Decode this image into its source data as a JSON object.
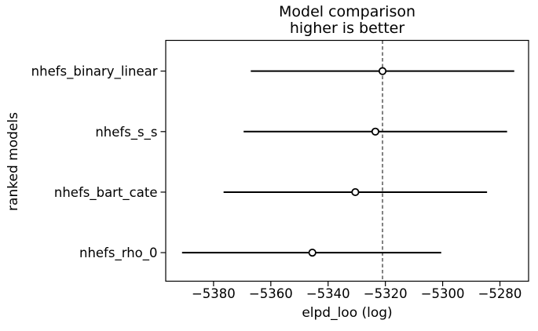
{
  "figure": {
    "title_line1": "Model comparison",
    "title_line2": "higher is better",
    "xlabel": "elpd_loo (log)",
    "ylabel": "ranked models"
  },
  "chart_data": {
    "type": "scatter",
    "variant": "forest-errorbar",
    "title": "Model comparison\nhigher is better",
    "xlabel": "elpd_loo (log)",
    "ylabel": "ranked models",
    "models": [
      {
        "name": "nhefs_binary_linear",
        "elpd_loo": -5321,
        "ci_lower": -5367,
        "ci_upper": -5275
      },
      {
        "name": "nhefs_s_s",
        "elpd_loo": -5323.5,
        "ci_lower": -5369.5,
        "ci_upper": -5277.5
      },
      {
        "name": "nhefs_bart_cate",
        "elpd_loo": -5330.5,
        "ci_lower": -5376.5,
        "ci_upper": -5284.5
      },
      {
        "name": "nhefs_rho_0",
        "elpd_loo": -5345.5,
        "ci_lower": -5391,
        "ci_upper": -5300.5
      }
    ],
    "reference_line_x": -5321,
    "x_ticks": [
      -5380,
      -5360,
      -5340,
      -5320,
      -5300,
      -5280
    ],
    "x_tick_labels": [
      "−5380",
      "−5360",
      "−5340",
      "−5320",
      "−5300",
      "−5280"
    ],
    "xlim": [
      -5396.7,
      -5270.0
    ],
    "grid": false,
    "legend": false,
    "colors": {
      "errorbar": "#000000",
      "marker_face": "#ffffff",
      "marker_edge": "#000000",
      "reference_line": "#808080",
      "spine": "#000000",
      "text": "#000000",
      "background": "#ffffff"
    }
  }
}
